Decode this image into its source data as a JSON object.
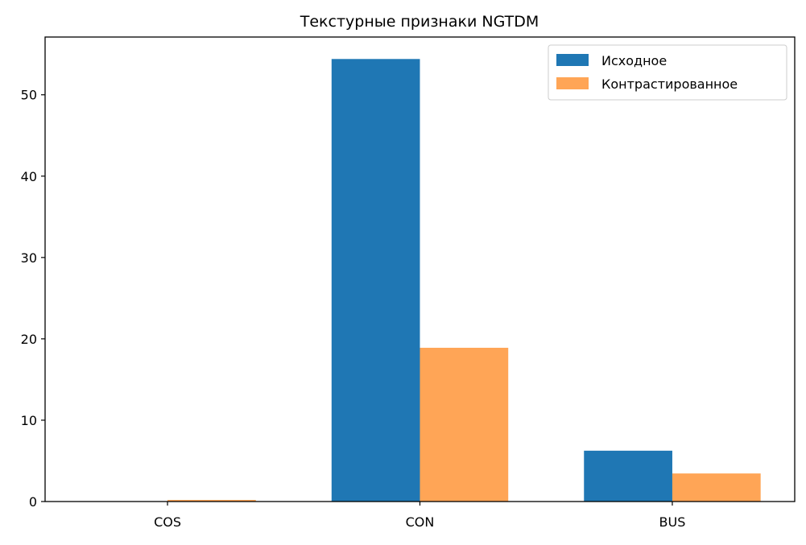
{
  "chart_data": {
    "type": "bar",
    "title": "Текстурные признаки NGTDM",
    "xlabel": "",
    "ylabel": "",
    "categories": [
      "COS",
      "CON",
      "BUS"
    ],
    "series": [
      {
        "name": "Исходное",
        "values": [
          0.05,
          54.4,
          6.25
        ],
        "color": "#1f77b4"
      },
      {
        "name": "Контрастированное",
        "values": [
          0.2,
          18.9,
          3.45
        ],
        "color": "#ffa556"
      }
    ],
    "ylim": [
      0,
      57.1
    ],
    "yticks": [
      0,
      10,
      20,
      30,
      40,
      50
    ],
    "grid": false,
    "legend_position": "top-right"
  }
}
